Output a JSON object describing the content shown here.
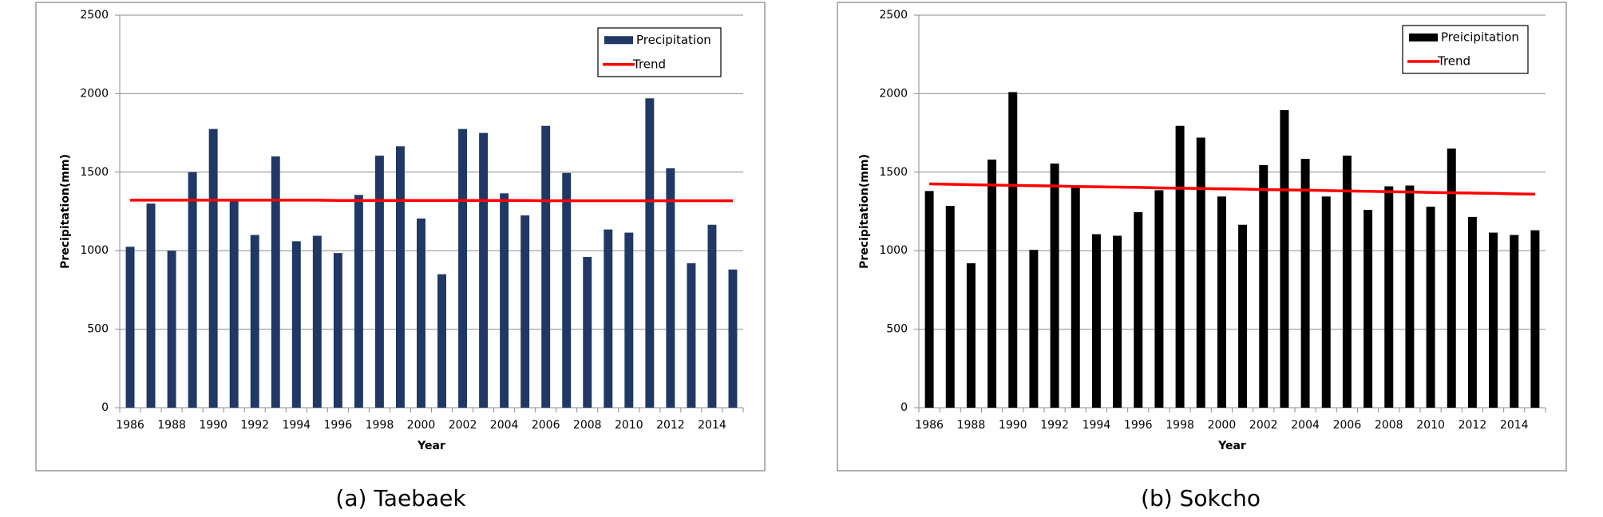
{
  "chart_data": [
    {
      "type": "bar",
      "caption": "(a) Taebaek",
      "y_label": "Precipitation(mm)",
      "x_label": "Year",
      "categories": [
        "1986",
        null,
        "1988",
        null,
        "1990",
        null,
        "1992",
        null,
        "1994",
        null,
        "1996",
        null,
        "1998",
        null,
        "2000",
        null,
        "2002",
        null,
        "2004",
        null,
        "2006",
        null,
        "2008",
        null,
        "2010",
        null,
        "2012",
        null,
        "2014",
        null
      ],
      "series": [
        {
          "name": "Precipitation",
          "type": "bar",
          "color": "#1f3864",
          "values": [
            1025,
            1300,
            1000,
            1500,
            1775,
            1320,
            1100,
            1600,
            1060,
            1095,
            985,
            1355,
            1605,
            1665,
            1205,
            850,
            1775,
            1750,
            1365,
            1225,
            1795,
            1495,
            960,
            1135,
            1115,
            1970,
            1525,
            920,
            1165,
            880
          ]
        },
        {
          "name": "Trend",
          "type": "line",
          "color": "#ff0000",
          "values": [
            1322,
            1322,
            1322,
            1322,
            1322,
            1322,
            1322,
            1322,
            1322,
            1322,
            1320,
            1320,
            1320,
            1320,
            1320,
            1320,
            1320,
            1320,
            1320,
            1320,
            1318,
            1318,
            1318,
            1318,
            1318,
            1318,
            1318,
            1318,
            1318,
            1318
          ]
        }
      ],
      "ylim": [
        0,
        2500
      ],
      "yticks": [
        0,
        500,
        1000,
        1500,
        2000,
        2500
      ],
      "grid": true,
      "legend": "upper right"
    },
    {
      "type": "bar",
      "caption": "(b) Sokcho",
      "y_label": "Precipitation(mm)",
      "x_label": "Year",
      "categories": [
        "1986",
        null,
        "1988",
        null,
        "1990",
        null,
        "1992",
        null,
        "1994",
        null,
        "1996",
        null,
        "1998",
        null,
        "2000",
        null,
        "2002",
        null,
        "2004",
        null,
        "2006",
        null,
        "2008",
        null,
        "2010",
        null,
        "2012",
        null,
        "2014",
        null
      ],
      "series": [
        {
          "name": "Preicipitation",
          "type": "bar",
          "color": "#000000",
          "values": [
            1380,
            1285,
            920,
            1580,
            2010,
            1005,
            1555,
            1405,
            1105,
            1095,
            1245,
            1385,
            1795,
            1720,
            1345,
            1165,
            1545,
            1895,
            1585,
            1345,
            1605,
            1260,
            1410,
            1415,
            1280,
            1650,
            1215,
            1115,
            1100,
            1130
          ]
        },
        {
          "name": "Trend",
          "type": "line",
          "color": "#ff0000",
          "values": [
            1425,
            1423,
            1420,
            1418,
            1416,
            1414,
            1412,
            1409,
            1407,
            1405,
            1403,
            1400,
            1398,
            1396,
            1394,
            1392,
            1389,
            1387,
            1385,
            1383,
            1380,
            1378,
            1376,
            1374,
            1371,
            1369,
            1367,
            1365,
            1362,
            1360
          ]
        }
      ],
      "ylim": [
        0,
        2500
      ],
      "yticks": [
        0,
        500,
        1000,
        1500,
        2000,
        2500
      ],
      "grid": true,
      "legend": "upper right"
    }
  ]
}
